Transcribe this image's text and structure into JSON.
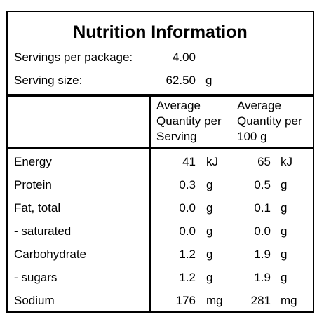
{
  "panel": {
    "title": "Nutrition Information",
    "servings_label": "Servings per package:",
    "servings_value": "4.00",
    "serving_size_label": "Serving size:",
    "serving_size_value": "62.50",
    "serving_size_unit": "g"
  },
  "columns": {
    "per_serving": [
      "Average",
      "Quantity per",
      "Serving"
    ],
    "per_100g": [
      "Average",
      "Quantity per",
      "100 g"
    ]
  },
  "rows": [
    {
      "name": "Energy",
      "serving": "41",
      "serving_unit": "kJ",
      "per100": "65",
      "per100_unit": "kJ"
    },
    {
      "name": "Protein",
      "serving": "0.3",
      "serving_unit": "g",
      "per100": "0.5",
      "per100_unit": "g"
    },
    {
      "name": "Fat, total",
      "serving": "0.0",
      "serving_unit": "g",
      "per100": "0.1",
      "per100_unit": "g"
    },
    {
      "name": "- saturated",
      "serving": "0.0",
      "serving_unit": "g",
      "per100": "0.0",
      "per100_unit": "g"
    },
    {
      "name": "Carbohydrate",
      "serving": "1.2",
      "serving_unit": "g",
      "per100": "1.9",
      "per100_unit": "g"
    },
    {
      "name": "- sugars",
      "serving": "1.2",
      "serving_unit": "g",
      "per100": "1.9",
      "per100_unit": "g"
    },
    {
      "name": "Sodium",
      "serving": "176",
      "serving_unit": "mg",
      "per100": "281",
      "per100_unit": "mg"
    }
  ]
}
